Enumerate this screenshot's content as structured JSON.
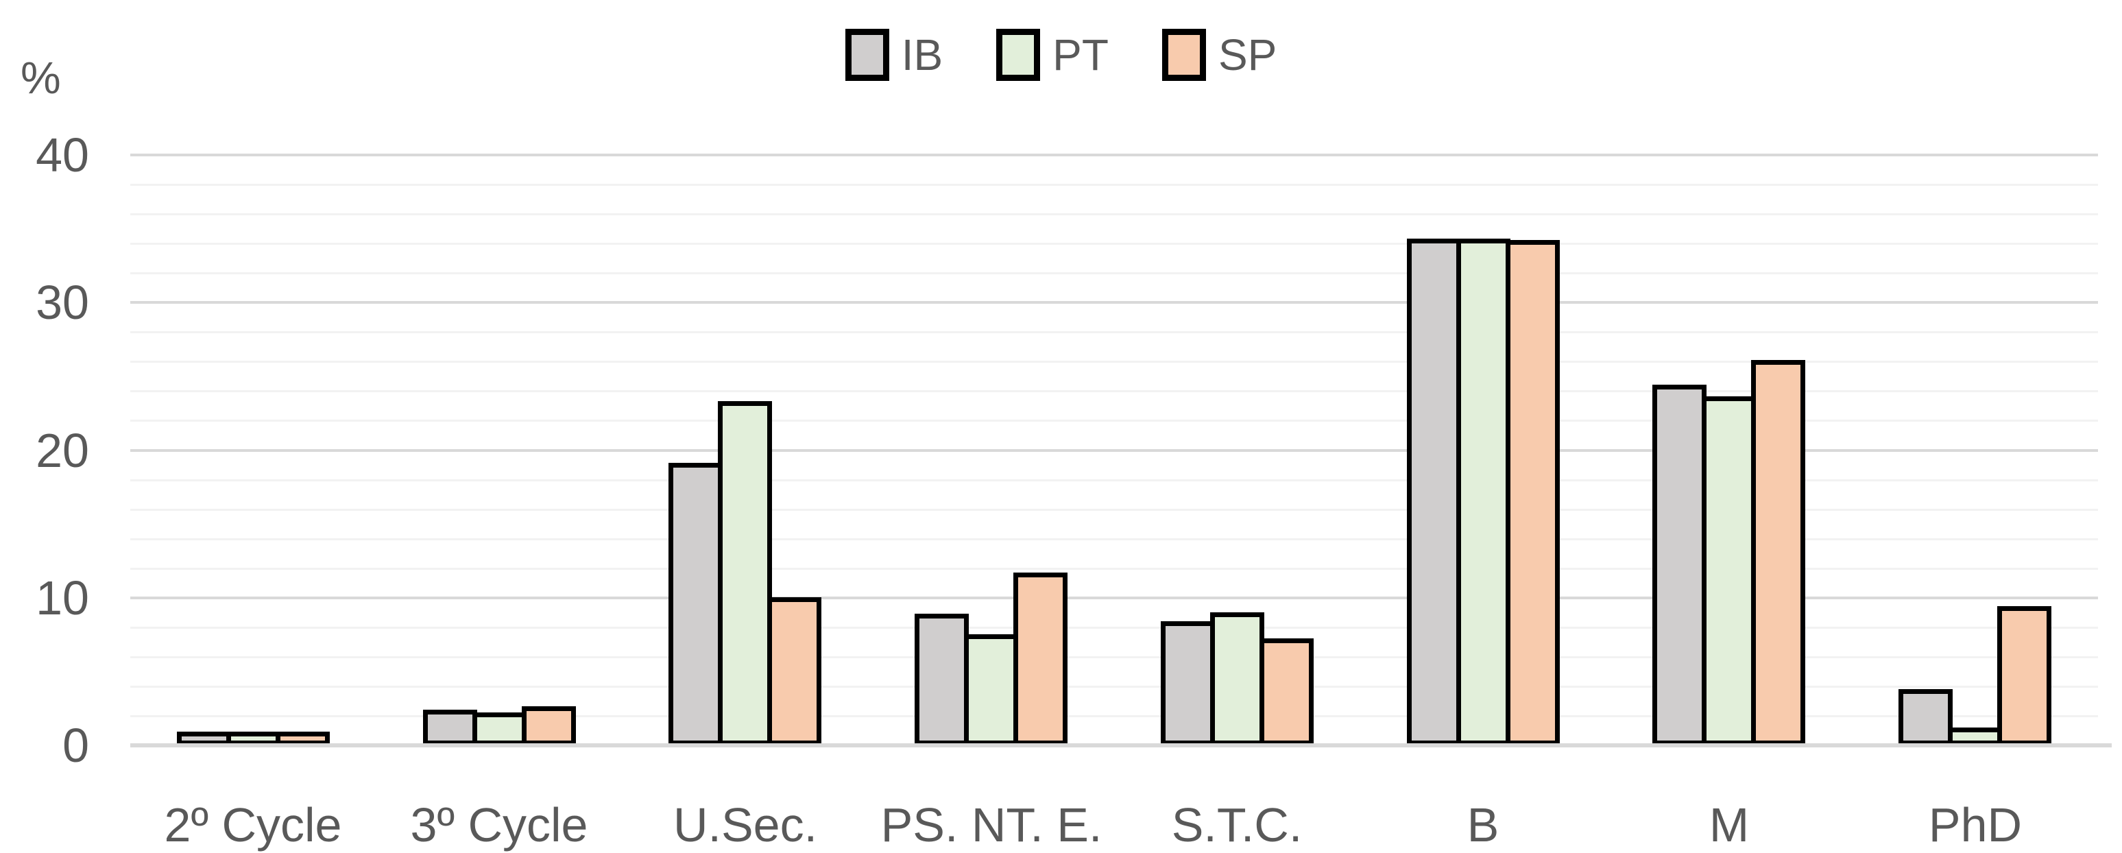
{
  "chart_data": {
    "type": "bar",
    "title": "",
    "ylabel": "%",
    "xlabel": "",
    "categories": [
      "2º Cycle",
      "3º Cycle",
      "U.Sec.",
      "PS. NT. E.",
      "S.T.C.",
      "B",
      "M",
      "PhD"
    ],
    "series": [
      {
        "name": "IB",
        "color": "#d0cece",
        "values": [
          0.6,
          2.1,
          18.8,
          8.6,
          8.1,
          34.0,
          24.1,
          3.5
        ]
      },
      {
        "name": "PT",
        "color": "#e2efda",
        "values": [
          0.6,
          1.9,
          23.0,
          7.2,
          8.7,
          34.0,
          23.3,
          0.9
        ]
      },
      {
        "name": "SP",
        "color": "#f8cbad",
        "values": [
          0.6,
          2.3,
          9.7,
          11.4,
          6.9,
          33.9,
          25.8,
          9.1
        ]
      }
    ],
    "ylim": [
      0,
      40
    ],
    "yticks": [
      0,
      10,
      20,
      30,
      40
    ],
    "ytick_labels": [
      "0",
      "10",
      "20",
      "30",
      "40"
    ],
    "minor_grid_step": 2,
    "grid": true,
    "legend_position": "top-center",
    "colors": {
      "text": "#595959",
      "bar_border": "#000000",
      "major_grid": "#d9d9d9",
      "minor_grid": "#f2f2f2",
      "axis_line": "#d9d9d9",
      "background": "#ffffff"
    }
  }
}
